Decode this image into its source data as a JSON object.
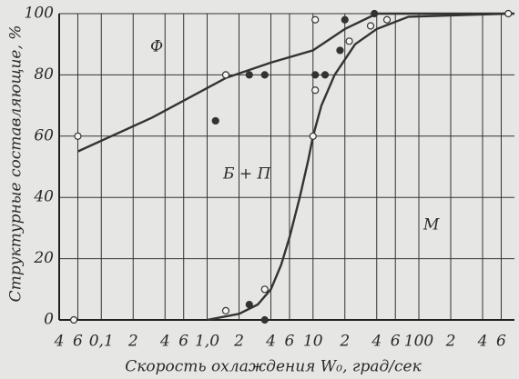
{
  "chart_data": {
    "type": "line",
    "x_label": "Скорость охлаждения W₀, град/сек",
    "y_label": "Структурные составляющие, %",
    "annotations": [
      "Ф",
      "Б + П",
      "М"
    ],
    "log_x": true,
    "grid": true,
    "color": "#333333",
    "xlim": [
      0.04,
      800
    ],
    "ylim": [
      0,
      100
    ],
    "xticks": [
      {
        "value": 0.04,
        "label": "4"
      },
      {
        "value": 0.06,
        "label": "6"
      },
      {
        "value": 0.1,
        "label": "0,1"
      },
      {
        "value": 0.2,
        "label": "2"
      },
      {
        "value": 0.4,
        "label": "4"
      },
      {
        "value": 0.6,
        "label": "6"
      },
      {
        "value": 1,
        "label": "1,0"
      },
      2,
      4,
      6,
      10,
      {
        "value": 20,
        "label": "2"
      },
      {
        "value": 40,
        "label": "4"
      },
      {
        "value": 60,
        "label": "6"
      },
      100,
      {
        "value": 200,
        "label": "2"
      },
      {
        "value": 400,
        "label": "4"
      },
      {
        "value": 600,
        "label": "6"
      }
    ],
    "yticks": [
      0,
      20,
      40,
      60,
      80,
      100
    ],
    "lines": [
      {
        "x": [
          0.06,
          0.3,
          1.5,
          4,
          10,
          20,
          40,
          100,
          800
        ],
        "values": [
          55,
          66,
          79,
          84,
          88,
          95,
          100,
          100,
          100
        ]
      },
      {
        "x": [
          1,
          2,
          3,
          4,
          5,
          6,
          7.5,
          9,
          10,
          12,
          16,
          25,
          40,
          80,
          700
        ],
        "values": [
          0,
          2,
          5,
          10,
          18,
          27,
          40,
          52,
          60,
          70,
          80,
          90,
          95,
          99,
          100
        ]
      }
    ],
    "points": {
      "open": {
        "x": [
          0.06,
          0.055,
          1.5,
          10.5,
          10.5,
          10,
          22,
          35,
          50,
          700,
          1.5,
          3.5
        ],
        "values": [
          60,
          0,
          80,
          98,
          75,
          60,
          91,
          96,
          98,
          100,
          3,
          10
        ]
      },
      "filled": {
        "x": [
          2.5,
          3.5,
          1.2,
          10.5,
          13,
          18,
          20,
          2.5,
          3.5,
          38
        ],
        "values": [
          80,
          80,
          65,
          80,
          80,
          88,
          98,
          5,
          0,
          100
        ]
      }
    }
  }
}
